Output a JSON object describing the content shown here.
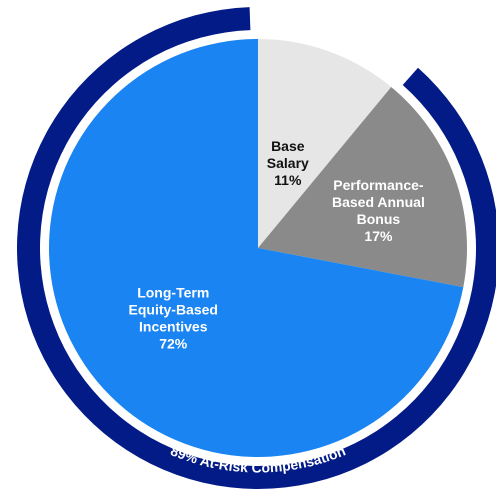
{
  "chart_data": {
    "type": "pie",
    "title": "",
    "slices": [
      {
        "label_lines": [
          "Base",
          "Salary"
        ],
        "value_text": "11%",
        "value": 11,
        "color": "#e6e6e6",
        "text_color": "#111111"
      },
      {
        "label_lines": [
          "Performance-",
          "Based Annual",
          "Bonus"
        ],
        "value_text": "17%",
        "value": 17,
        "color": "#8a8a8a",
        "text_color": "#ffffff"
      },
      {
        "label_lines": [
          "Long-Term",
          "Equity-Based",
          "Incentives"
        ],
        "value_text": "72%",
        "value": 72,
        "color": "#1a84f2",
        "text_color": "#ffffff"
      }
    ],
    "outer_ring": {
      "label": "89% At-Risk Compensation",
      "value": 89,
      "color": "#031b87",
      "label_color": "#ffffff"
    }
  }
}
